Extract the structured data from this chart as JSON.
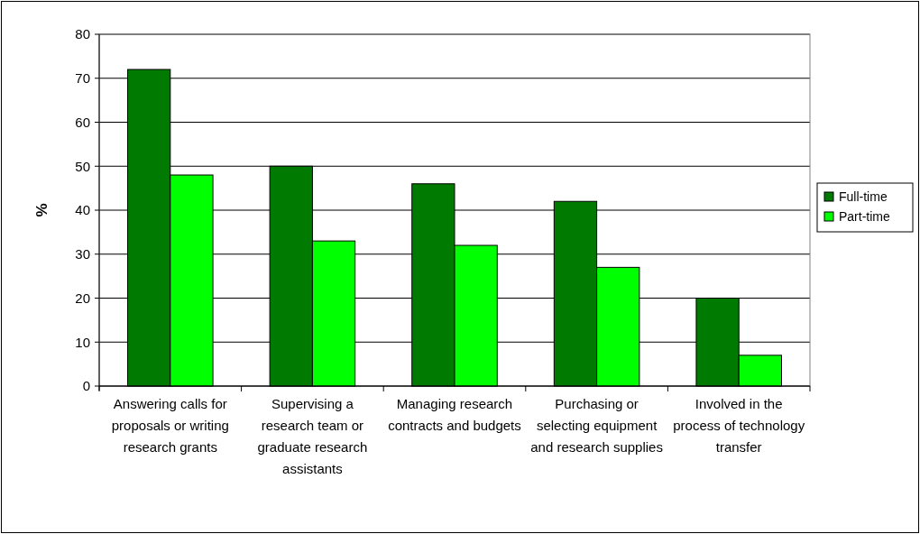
{
  "chart_data": {
    "type": "bar",
    "ylabel": "%",
    "categories": [
      "Answering calls for proposals or writing research grants",
      "Supervising a research team or graduate research assistants",
      "Managing research contracts and budgets",
      "Purchasing or selecting equipment and research supplies",
      "Involved in the process of technology transfer"
    ],
    "series": [
      {
        "name": "Full-time",
        "color": "#007a00",
        "values": [
          72,
          50,
          46,
          42,
          20
        ]
      },
      {
        "name": "Part-time",
        "color": "#00ff00",
        "values": [
          48,
          33,
          32,
          27,
          7
        ]
      }
    ],
    "ylim": [
      0,
      80
    ],
    "yticks": [
      0,
      10,
      20,
      30,
      40,
      50,
      60,
      70,
      80
    ],
    "grid": "y",
    "legend": "right"
  }
}
